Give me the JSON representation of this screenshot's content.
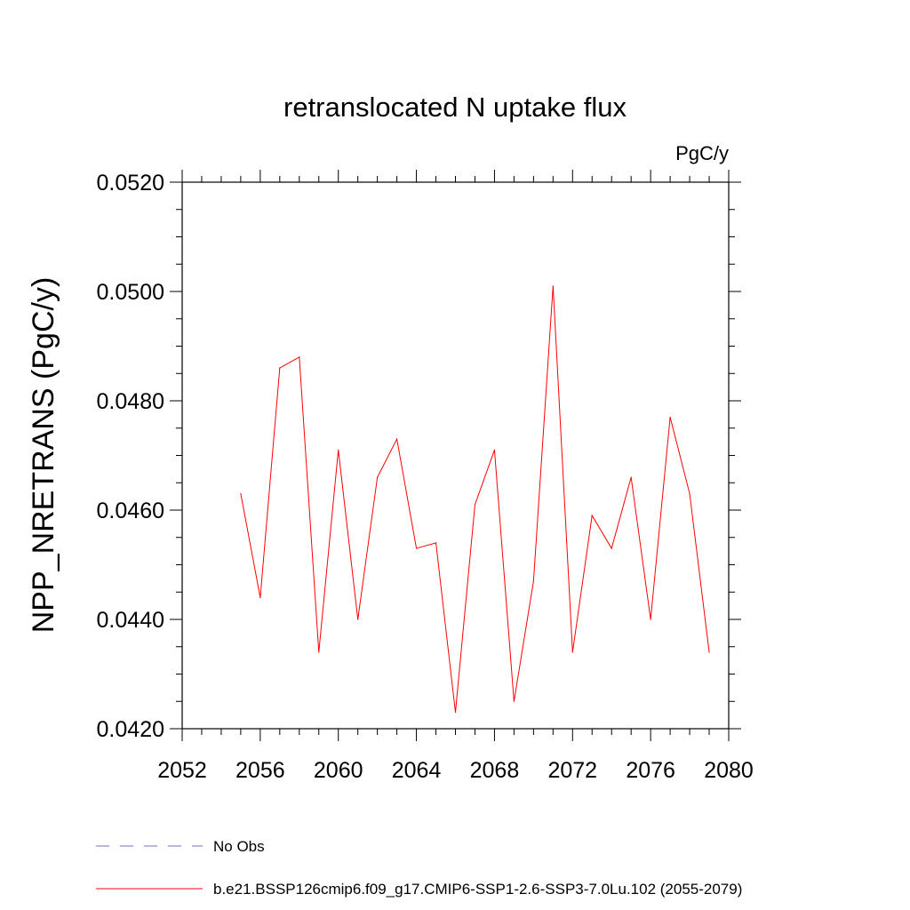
{
  "chart_data": {
    "type": "line",
    "title": "retranslocated N uptake flux",
    "units_label": "PgC/y",
    "xlabel": "",
    "ylabel": "NPP_NRETRANS  (PgC/y)",
    "xlim": [
      2052,
      2080
    ],
    "ylim": [
      0.042,
      0.052
    ],
    "x_ticks": [
      "2052",
      "2056",
      "2060",
      "2064",
      "2068",
      "2072",
      "2076",
      "2080"
    ],
    "y_ticks": [
      "0.0420",
      "0.0440",
      "0.0460",
      "0.0480",
      "0.0500",
      "0.0520"
    ],
    "grid": false,
    "legend_position": "bottom",
    "series": [
      {
        "name": "No Obs",
        "color": "#7b68c8",
        "dash": "dashed",
        "x": [],
        "values": []
      },
      {
        "name": "b.e21.BSSP126cmip6.f09_g17.CMIP6-SSP1-2.6-SSP3-7.0Lu.102 (2055-2079)",
        "color": "#ff0000",
        "dash": "solid",
        "x": [
          2055,
          2056,
          2057,
          2058,
          2059,
          2060,
          2061,
          2062,
          2063,
          2064,
          2065,
          2066,
          2067,
          2068,
          2069,
          2070,
          2071,
          2072,
          2073,
          2074,
          2075,
          2076,
          2077,
          2078,
          2079
        ],
        "values": [
          0.0463,
          0.0444,
          0.0486,
          0.0488,
          0.0434,
          0.0471,
          0.044,
          0.0466,
          0.0473,
          0.0453,
          0.0454,
          0.0423,
          0.0461,
          0.0471,
          0.0425,
          0.0447,
          0.0501,
          0.0434,
          0.0459,
          0.0453,
          0.0466,
          0.044,
          0.0477,
          0.0463,
          0.0434
        ]
      }
    ]
  }
}
